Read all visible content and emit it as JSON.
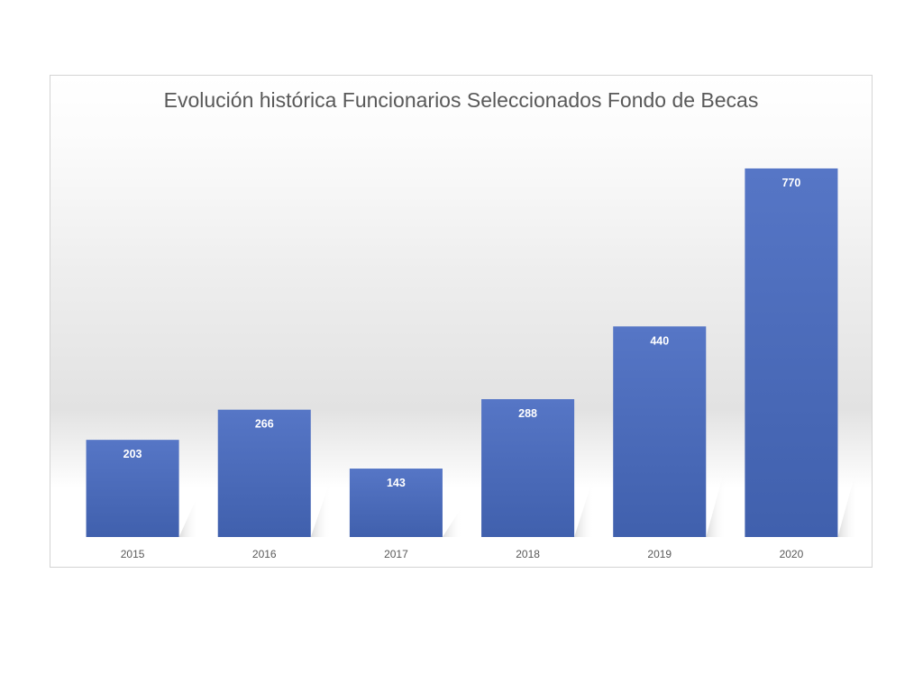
{
  "chart_data": {
    "type": "bar",
    "title": "Evolución histórica Funcionarios Seleccionados Fondo de Becas",
    "categories": [
      "2015",
      "2016",
      "2017",
      "2018",
      "2019",
      "2020"
    ],
    "values": [
      203,
      266,
      143,
      288,
      440,
      770
    ],
    "data_labels": [
      "203",
      "266",
      "143",
      "288",
      "440",
      "770"
    ],
    "xlabel": "",
    "ylabel": "",
    "ylim": [
      0,
      800
    ],
    "grid": false,
    "legend": "none",
    "colors": {
      "bar_top": "#5676c6",
      "bar_bottom": "#4060ad",
      "label_text": "#ffffff",
      "tick_text": "#595959",
      "title_text": "#595959",
      "shadow": "#bdbdbd"
    }
  }
}
